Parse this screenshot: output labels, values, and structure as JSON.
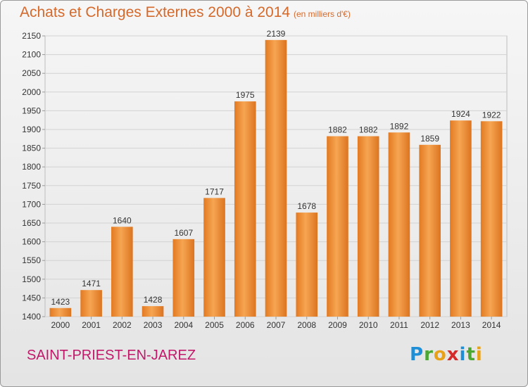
{
  "header": {
    "title": "Achats et Charges Externes 2000 à 2014",
    "subtitle": "(en milliers d'€)"
  },
  "footer": {
    "place": "SAINT-PRIEST-EN-JAREZ",
    "logo": "Proxiti"
  },
  "chart_data": {
    "type": "bar",
    "categories": [
      "2000",
      "2001",
      "2002",
      "2003",
      "2004",
      "2005",
      "2006",
      "2007",
      "2008",
      "2009",
      "2010",
      "2011",
      "2012",
      "2013",
      "2014"
    ],
    "values": [
      1423,
      1471,
      1640,
      1428,
      1607,
      1717,
      1975,
      2139,
      1678,
      1882,
      1882,
      1892,
      1859,
      1924,
      1922
    ],
    "title": "Achats et Charges Externes 2000 à 2014",
    "subtitle": "(en milliers d'€)",
    "xlabel": "",
    "ylabel": "",
    "ylim": [
      1400,
      2150
    ],
    "yticks": [
      1400,
      1450,
      1500,
      1550,
      1600,
      1650,
      1700,
      1750,
      1800,
      1850,
      1900,
      1950,
      2000,
      2050,
      2100,
      2150
    ],
    "grid": true,
    "bar_color": "#f0913a"
  }
}
